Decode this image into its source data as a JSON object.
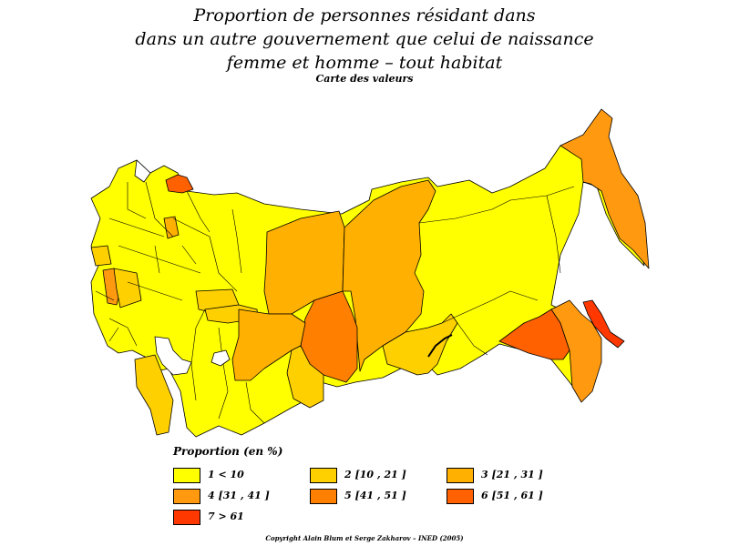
{
  "title": {
    "line1": "Proportion de personnes résidant dans",
    "line2": "dans un autre gouvernement que celui de naissance",
    "line3": "femme et homme  –  tout habitat",
    "subtitle": "Carte des valeurs"
  },
  "legend": {
    "title": "Proportion  (en %)",
    "items": [
      {
        "label": "1  <  10",
        "color": "#FFFF00"
      },
      {
        "label": "2  [10  ,  21 ]",
        "color": "#FFD000"
      },
      {
        "label": "3  [21  ,  31 ]",
        "color": "#FFB000"
      },
      {
        "label": "4  [31  ,  41 ]",
        "color": "#FF9A10"
      },
      {
        "label": "5  [41  ,  51 ]",
        "color": "#FF8000"
      },
      {
        "label": "6  [51  ,  61 ]",
        "color": "#FF6000"
      },
      {
        "label": "7  >  61",
        "color": "#FF3800"
      }
    ]
  },
  "copyright": "Copyright  Alain  Blum  et  Serge  Zakharov  –  INED  (2005)",
  "colors": {
    "c1": "#FFFF00",
    "c2": "#FFD000",
    "c3": "#FFB000",
    "c4": "#FF9A10",
    "c5": "#FF8000",
    "c6": "#FF6000",
    "c7": "#FF3800",
    "border": "#000000",
    "background": "#FFFFFF"
  }
}
